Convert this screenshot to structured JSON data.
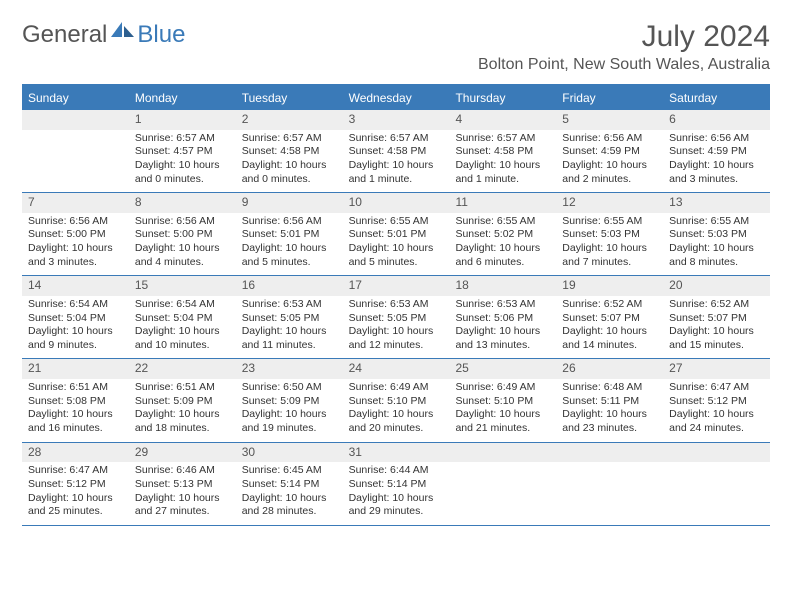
{
  "logo": {
    "general": "General",
    "blue": "Blue"
  },
  "title": "July 2024",
  "location": "Bolton Point, New South Wales, Australia",
  "colors": {
    "header_blue": "#3a7ab8",
    "daynum_bg": "#eeeeee",
    "text": "#333333",
    "muted": "#555555"
  },
  "weekdays": [
    "Sunday",
    "Monday",
    "Tuesday",
    "Wednesday",
    "Thursday",
    "Friday",
    "Saturday"
  ],
  "calendar": {
    "start_weekday_index": 1,
    "days": [
      {
        "n": 1,
        "sr": "6:57 AM",
        "ss": "4:57 PM",
        "dl": "10 hours and 0 minutes."
      },
      {
        "n": 2,
        "sr": "6:57 AM",
        "ss": "4:58 PM",
        "dl": "10 hours and 0 minutes."
      },
      {
        "n": 3,
        "sr": "6:57 AM",
        "ss": "4:58 PM",
        "dl": "10 hours and 1 minute."
      },
      {
        "n": 4,
        "sr": "6:57 AM",
        "ss": "4:58 PM",
        "dl": "10 hours and 1 minute."
      },
      {
        "n": 5,
        "sr": "6:56 AM",
        "ss": "4:59 PM",
        "dl": "10 hours and 2 minutes."
      },
      {
        "n": 6,
        "sr": "6:56 AM",
        "ss": "4:59 PM",
        "dl": "10 hours and 3 minutes."
      },
      {
        "n": 7,
        "sr": "6:56 AM",
        "ss": "5:00 PM",
        "dl": "10 hours and 3 minutes."
      },
      {
        "n": 8,
        "sr": "6:56 AM",
        "ss": "5:00 PM",
        "dl": "10 hours and 4 minutes."
      },
      {
        "n": 9,
        "sr": "6:56 AM",
        "ss": "5:01 PM",
        "dl": "10 hours and 5 minutes."
      },
      {
        "n": 10,
        "sr": "6:55 AM",
        "ss": "5:01 PM",
        "dl": "10 hours and 5 minutes."
      },
      {
        "n": 11,
        "sr": "6:55 AM",
        "ss": "5:02 PM",
        "dl": "10 hours and 6 minutes."
      },
      {
        "n": 12,
        "sr": "6:55 AM",
        "ss": "5:03 PM",
        "dl": "10 hours and 7 minutes."
      },
      {
        "n": 13,
        "sr": "6:55 AM",
        "ss": "5:03 PM",
        "dl": "10 hours and 8 minutes."
      },
      {
        "n": 14,
        "sr": "6:54 AM",
        "ss": "5:04 PM",
        "dl": "10 hours and 9 minutes."
      },
      {
        "n": 15,
        "sr": "6:54 AM",
        "ss": "5:04 PM",
        "dl": "10 hours and 10 minutes."
      },
      {
        "n": 16,
        "sr": "6:53 AM",
        "ss": "5:05 PM",
        "dl": "10 hours and 11 minutes."
      },
      {
        "n": 17,
        "sr": "6:53 AM",
        "ss": "5:05 PM",
        "dl": "10 hours and 12 minutes."
      },
      {
        "n": 18,
        "sr": "6:53 AM",
        "ss": "5:06 PM",
        "dl": "10 hours and 13 minutes."
      },
      {
        "n": 19,
        "sr": "6:52 AM",
        "ss": "5:07 PM",
        "dl": "10 hours and 14 minutes."
      },
      {
        "n": 20,
        "sr": "6:52 AM",
        "ss": "5:07 PM",
        "dl": "10 hours and 15 minutes."
      },
      {
        "n": 21,
        "sr": "6:51 AM",
        "ss": "5:08 PM",
        "dl": "10 hours and 16 minutes."
      },
      {
        "n": 22,
        "sr": "6:51 AM",
        "ss": "5:09 PM",
        "dl": "10 hours and 18 minutes."
      },
      {
        "n": 23,
        "sr": "6:50 AM",
        "ss": "5:09 PM",
        "dl": "10 hours and 19 minutes."
      },
      {
        "n": 24,
        "sr": "6:49 AM",
        "ss": "5:10 PM",
        "dl": "10 hours and 20 minutes."
      },
      {
        "n": 25,
        "sr": "6:49 AM",
        "ss": "5:10 PM",
        "dl": "10 hours and 21 minutes."
      },
      {
        "n": 26,
        "sr": "6:48 AM",
        "ss": "5:11 PM",
        "dl": "10 hours and 23 minutes."
      },
      {
        "n": 27,
        "sr": "6:47 AM",
        "ss": "5:12 PM",
        "dl": "10 hours and 24 minutes."
      },
      {
        "n": 28,
        "sr": "6:47 AM",
        "ss": "5:12 PM",
        "dl": "10 hours and 25 minutes."
      },
      {
        "n": 29,
        "sr": "6:46 AM",
        "ss": "5:13 PM",
        "dl": "10 hours and 27 minutes."
      },
      {
        "n": 30,
        "sr": "6:45 AM",
        "ss": "5:14 PM",
        "dl": "10 hours and 28 minutes."
      },
      {
        "n": 31,
        "sr": "6:44 AM",
        "ss": "5:14 PM",
        "dl": "10 hours and 29 minutes."
      }
    ]
  },
  "labels": {
    "sunrise": "Sunrise:",
    "sunset": "Sunset:",
    "daylight": "Daylight:"
  }
}
